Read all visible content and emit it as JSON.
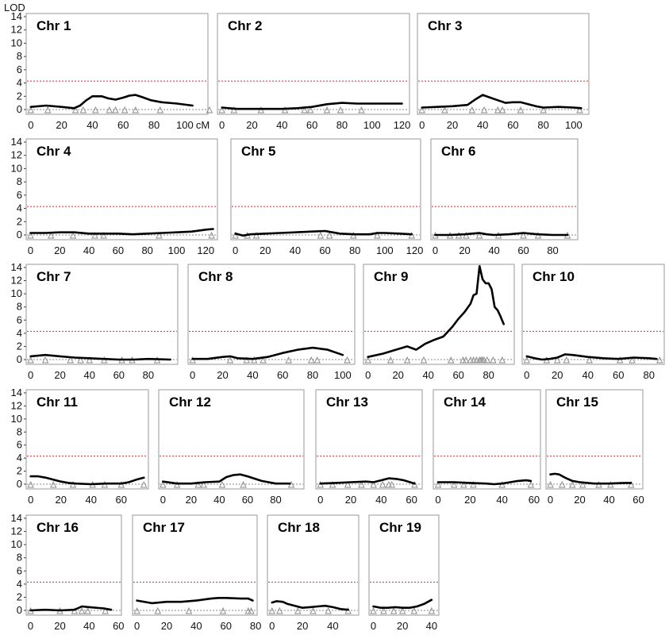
{
  "chart_data": {
    "type": "line",
    "y_label": "LOD",
    "x_unit_label": "cM",
    "ylim": [
      0,
      14
    ],
    "y_ticks": [
      "0",
      "2",
      "4",
      "6",
      "8",
      "10",
      "12",
      "14"
    ],
    "threshold": 4.3,
    "colors": {
      "curve": "#000000",
      "threshold": "#cc3333",
      "baseline": "#888888",
      "marker": "#888888",
      "frame": "#999999"
    },
    "panels": [
      {
        "title": "Chr 1",
        "xlim": [
          -3,
          115
        ],
        "xticks": [
          "0",
          "20",
          "40",
          "60",
          "80",
          "100"
        ],
        "x": [
          0,
          10,
          20,
          28,
          32,
          36,
          40,
          46,
          50,
          55,
          60,
          64,
          68,
          72,
          78,
          85,
          95,
          105
        ],
        "y": [
          0.4,
          0.6,
          0.4,
          0.2,
          0.6,
          1.4,
          2.0,
          2.0,
          1.7,
          1.5,
          1.8,
          2.1,
          2.2,
          1.9,
          1.4,
          1.1,
          0.9,
          0.6
        ],
        "markers": [
          0,
          11,
          29,
          34,
          42,
          51,
          55,
          61,
          68,
          84,
          116
        ]
      },
      {
        "title": "Chr 2",
        "xlim": [
          -3,
          125
        ],
        "xticks": [
          "0",
          "20",
          "40",
          "60",
          "80",
          "100",
          "120"
        ],
        "x": [
          0,
          10,
          20,
          30,
          40,
          50,
          60,
          70,
          80,
          90,
          100,
          110,
          120
        ],
        "y": [
          0.3,
          0.1,
          0.1,
          0.1,
          0.1,
          0.2,
          0.4,
          0.8,
          1.0,
          0.9,
          0.9,
          0.9,
          0.9
        ],
        "markers": [
          0,
          8,
          26,
          42,
          55,
          59,
          70,
          79,
          93
        ]
      },
      {
        "title": "Chr 3",
        "xlim": [
          -3,
          110
        ],
        "xticks": [
          "0",
          "20",
          "40",
          "60",
          "80",
          "100"
        ],
        "x": [
          0,
          10,
          20,
          30,
          35,
          40,
          45,
          50,
          55,
          60,
          65,
          70,
          75,
          80,
          90,
          100,
          105
        ],
        "y": [
          0.3,
          0.4,
          0.5,
          0.7,
          1.5,
          2.2,
          1.8,
          1.4,
          1.0,
          1.1,
          1.1,
          0.8,
          0.5,
          0.3,
          0.4,
          0.3,
          0.2
        ],
        "markers": [
          0,
          15,
          33,
          41,
          50,
          53,
          65,
          80,
          104
        ]
      },
      {
        "title": "Chr 4",
        "xlim": [
          -3,
          128
        ],
        "xticks": [
          "0",
          "20",
          "40",
          "60",
          "80",
          "100",
          "120"
        ],
        "x": [
          0,
          10,
          20,
          30,
          40,
          50,
          60,
          70,
          80,
          90,
          100,
          110,
          120,
          125
        ],
        "y": [
          0.3,
          0.3,
          0.4,
          0.4,
          0.2,
          0.2,
          0.2,
          0.1,
          0.2,
          0.3,
          0.4,
          0.5,
          0.8,
          0.9
        ],
        "markers": [
          0,
          14,
          29,
          44,
          50,
          88,
          124
        ]
      },
      {
        "title": "Chr 5",
        "xlim": [
          -3,
          124
        ],
        "xticks": [
          "0",
          "20",
          "40",
          "60",
          "80",
          "100",
          "120"
        ],
        "x": [
          0,
          5,
          10,
          20,
          30,
          40,
          50,
          60,
          65,
          70,
          80,
          90,
          95,
          100,
          110,
          118
        ],
        "y": [
          0.2,
          -0.1,
          0.1,
          0.2,
          0.3,
          0.4,
          0.5,
          0.6,
          0.4,
          0.2,
          0.1,
          0.1,
          0.3,
          0.3,
          0.2,
          0.1
        ],
        "markers": [
          0,
          8,
          14,
          57,
          63,
          79,
          95,
          118
        ]
      },
      {
        "title": "Chr 6",
        "xlim": [
          -3,
          97
        ],
        "xticks": [
          "0",
          "20",
          "40",
          "60",
          "80"
        ],
        "x": [
          0,
          10,
          20,
          25,
          30,
          35,
          40,
          50,
          60,
          70,
          80,
          90
        ],
        "y": [
          0.0,
          0.0,
          0.1,
          0.2,
          0.3,
          0.1,
          0.0,
          0.1,
          0.3,
          0.1,
          0.0,
          0.0
        ],
        "markers": [
          0,
          10,
          16,
          21,
          30,
          43,
          60,
          70,
          90
        ]
      },
      {
        "title": "Chr 7",
        "xlim": [
          -3,
          100
        ],
        "xticks": [
          "0",
          "20",
          "40",
          "60",
          "80"
        ],
        "x": [
          0,
          10,
          20,
          30,
          40,
          50,
          60,
          70,
          80,
          95
        ],
        "y": [
          0.5,
          0.7,
          0.5,
          0.3,
          0.2,
          0.1,
          0.0,
          0.0,
          0.1,
          0.0
        ],
        "markers": [
          0,
          10,
          27,
          34,
          40,
          50,
          62,
          69,
          86
        ]
      },
      {
        "title": "Chr 8",
        "xlim": [
          -3,
          108
        ],
        "xticks": [
          "0",
          "20",
          "40",
          "60",
          "80",
          "100"
        ],
        "x": [
          0,
          10,
          20,
          25,
          30,
          40,
          50,
          60,
          70,
          80,
          90,
          100
        ],
        "y": [
          0.1,
          0.1,
          0.4,
          0.5,
          0.2,
          0.1,
          0.4,
          1.0,
          1.5,
          1.8,
          1.5,
          0.7
        ],
        "markers": [
          0,
          25,
          36,
          41,
          47,
          64,
          79,
          83,
          103
        ]
      },
      {
        "title": "Chr 9",
        "xlim": [
          -3,
          97
        ],
        "xticks": [
          "0",
          "20",
          "40",
          "60",
          "80"
        ],
        "x": [
          0,
          10,
          20,
          26,
          32,
          38,
          44,
          50,
          56,
          60,
          64,
          68,
          70,
          72,
          74,
          76,
          78,
          80,
          82,
          84,
          86,
          88,
          90
        ],
        "y": [
          0.4,
          0.9,
          1.6,
          2.0,
          1.5,
          2.4,
          3.0,
          3.5,
          5.0,
          6.2,
          7.2,
          8.5,
          9.8,
          10.0,
          14.2,
          12.2,
          11.6,
          11.6,
          10.7,
          8.0,
          7.5,
          6.5,
          5.4
        ],
        "markers": [
          0,
          15,
          26,
          37,
          55,
          63,
          65,
          68,
          70,
          72,
          74,
          75,
          76,
          77,
          79,
          83,
          89
        ]
      },
      {
        "title": "Chr 10",
        "xlim": [
          -3,
          90
        ],
        "xticks": [
          "0",
          "20",
          "40",
          "60",
          "80"
        ],
        "x": [
          0,
          5,
          10,
          15,
          20,
          25,
          30,
          40,
          50,
          60,
          70,
          80,
          85
        ],
        "y": [
          0.5,
          0.2,
          0.0,
          0.1,
          0.3,
          0.8,
          0.7,
          0.4,
          0.2,
          0.1,
          0.3,
          0.2,
          0.1
        ],
        "markers": [
          0,
          13,
          20,
          26,
          41,
          61,
          69,
          87
        ]
      },
      {
        "title": "Chr 11",
        "xlim": [
          -3,
          78
        ],
        "xticks": [
          "0",
          "20",
          "40",
          "60"
        ],
        "x": [
          0,
          5,
          10,
          15,
          20,
          25,
          30,
          40,
          50,
          60,
          65,
          70,
          75
        ],
        "y": [
          1.2,
          1.2,
          1.0,
          0.7,
          0.4,
          0.2,
          0.1,
          0.0,
          0.1,
          0.1,
          0.3,
          0.7,
          1.0
        ],
        "markers": [
          0,
          15,
          28,
          41,
          49,
          60,
          75
        ]
      },
      {
        "title": "Chr 12",
        "xlim": [
          -3,
          100
        ],
        "xticks": [
          "0",
          "20",
          "40",
          "60",
          "80"
        ],
        "x": [
          0,
          10,
          20,
          30,
          40,
          45,
          50,
          55,
          60,
          70,
          80,
          90
        ],
        "y": [
          0.4,
          0.1,
          0.1,
          0.3,
          0.4,
          1.1,
          1.4,
          1.5,
          1.2,
          0.5,
          0.1,
          0.1
        ],
        "markers": [
          0,
          10,
          25,
          29,
          42,
          57,
          91
        ]
      },
      {
        "title": "Chr 13",
        "xlim": [
          -3,
          67
        ],
        "xticks": [
          "0",
          "20",
          "40",
          "60"
        ],
        "x": [
          0,
          10,
          20,
          30,
          35,
          40,
          45,
          50,
          55,
          62
        ],
        "y": [
          0.1,
          0.2,
          0.3,
          0.4,
          0.3,
          0.6,
          0.9,
          0.8,
          0.6,
          0.1
        ],
        "markers": [
          0,
          8,
          18,
          27,
          35,
          41,
          45,
          47,
          62
        ]
      },
      {
        "title": "Chr 14",
        "xlim": [
          -3,
          64
        ],
        "xticks": [
          "0",
          "20",
          "40",
          "60"
        ],
        "x": [
          0,
          10,
          20,
          30,
          35,
          40,
          50,
          55,
          58
        ],
        "y": [
          0.3,
          0.3,
          0.2,
          0.1,
          0.0,
          0.1,
          0.5,
          0.6,
          0.5
        ],
        "markers": [
          0,
          10,
          16,
          22,
          40,
          58
        ]
      },
      {
        "title": "Chr 15",
        "xlim": [
          -3,
          63
        ],
        "xticks": [
          "0",
          "20",
          "40",
          "60"
        ],
        "x": [
          0,
          3,
          6,
          10,
          15,
          20,
          30,
          40,
          50,
          55
        ],
        "y": [
          1.5,
          1.6,
          1.5,
          1.0,
          0.5,
          0.3,
          0.1,
          0.1,
          0.2,
          0.2
        ],
        "markers": [
          0,
          8,
          15,
          22,
          33,
          41,
          55
        ]
      },
      {
        "title": "Chr 16",
        "xlim": [
          -3,
          62
        ],
        "xticks": [
          "0",
          "20",
          "40",
          "60"
        ],
        "x": [
          0,
          10,
          20,
          30,
          35,
          40,
          50,
          55
        ],
        "y": [
          0.0,
          0.1,
          0.0,
          0.1,
          0.6,
          0.5,
          0.3,
          0.1
        ],
        "markers": [
          0,
          20,
          30,
          35,
          39,
          51
        ]
      },
      {
        "title": "Chr 17",
        "xlim": [
          -3,
          81
        ],
        "xticks": [
          "0",
          "20",
          "40",
          "60",
          "80"
        ],
        "x": [
          0,
          10,
          20,
          30,
          40,
          50,
          55,
          60,
          70,
          75,
          78
        ],
        "y": [
          1.5,
          1.1,
          1.3,
          1.3,
          1.5,
          1.8,
          1.9,
          1.9,
          1.8,
          1.8,
          1.5
        ],
        "markers": [
          0,
          14,
          35,
          58,
          75,
          77
        ]
      },
      {
        "title": "Chr 18",
        "xlim": [
          -3,
          57
        ],
        "xticks": [
          "0",
          "20",
          "40"
        ],
        "x": [
          0,
          3,
          7,
          10,
          15,
          20,
          25,
          30,
          35,
          40,
          45,
          50
        ],
        "y": [
          1.2,
          1.4,
          1.3,
          1.0,
          0.7,
          0.4,
          0.5,
          0.6,
          0.7,
          0.5,
          0.2,
          0.1
        ],
        "markers": [
          0,
          5,
          17,
          27,
          37,
          50
        ]
      },
      {
        "title": "Chr 19",
        "xlim": [
          -3,
          45
        ],
        "xticks": [
          "0",
          "20",
          "40"
        ],
        "x": [
          0,
          5,
          10,
          15,
          20,
          25,
          30,
          35,
          40
        ],
        "y": [
          0.6,
          0.4,
          0.4,
          0.5,
          0.4,
          0.4,
          0.6,
          1.0,
          1.6
        ],
        "markers": [
          0,
          7,
          14,
          20,
          28,
          40
        ]
      }
    ]
  }
}
